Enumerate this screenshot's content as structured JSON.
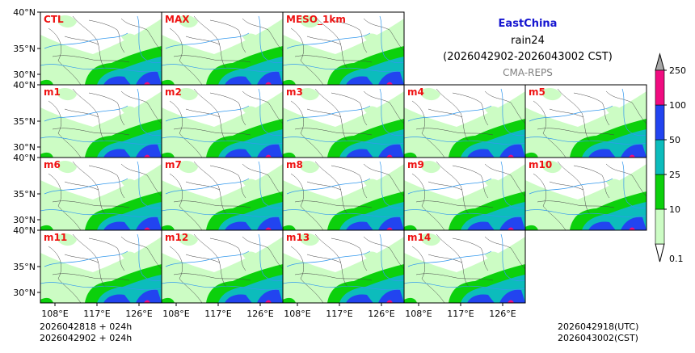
{
  "title": {
    "region": "EastChina",
    "variable": "rain24",
    "period": "(2026042902-2026043002 CST)",
    "model": "CMA-REPS",
    "region_color": "#1515d0",
    "model_color": "#808080"
  },
  "panels": [
    {
      "label": "CTL",
      "row": 0,
      "col": 0
    },
    {
      "label": "MAX",
      "row": 0,
      "col": 1
    },
    {
      "label": "MESO_1km",
      "row": 0,
      "col": 2
    },
    {
      "label": "m1",
      "row": 1,
      "col": 0
    },
    {
      "label": "m2",
      "row": 1,
      "col": 1
    },
    {
      "label": "m3",
      "row": 1,
      "col": 2
    },
    {
      "label": "m4",
      "row": 1,
      "col": 3
    },
    {
      "label": "m5",
      "row": 1,
      "col": 4
    },
    {
      "label": "m6",
      "row": 2,
      "col": 0
    },
    {
      "label": "m7",
      "row": 2,
      "col": 1
    },
    {
      "label": "m8",
      "row": 2,
      "col": 2
    },
    {
      "label": "m9",
      "row": 2,
      "col": 3
    },
    {
      "label": "m10",
      "row": 2,
      "col": 4
    },
    {
      "label": "m11",
      "row": 3,
      "col": 0
    },
    {
      "label": "m12",
      "row": 3,
      "col": 1
    },
    {
      "label": "m13",
      "row": 3,
      "col": 2
    },
    {
      "label": "m14",
      "row": 3,
      "col": 3
    }
  ],
  "lat_ticks": [
    "40°N",
    "35°N",
    "30°N"
  ],
  "lon_ticks": [
    "108°E",
    "117°E",
    "126°E"
  ],
  "colorbar": {
    "levels": [
      "0.1",
      "10",
      "25",
      "50",
      "100",
      "250"
    ],
    "colors": [
      "#ccfcc4",
      "#0cd00c",
      "#0cbcbc",
      "#2244f0",
      "#f00c80",
      "#a8a8a8"
    ],
    "under_color": "#ffffff"
  },
  "footer": {
    "left_line1": "2026042818  +  024h",
    "left_line2": "2026042902  +  024h",
    "right_line1": "2026042918(UTC)",
    "right_line2": "2026043002(CST)"
  },
  "colors": {
    "panel_label": "#ee1111",
    "river": "#3399ee",
    "border": "#444444"
  }
}
